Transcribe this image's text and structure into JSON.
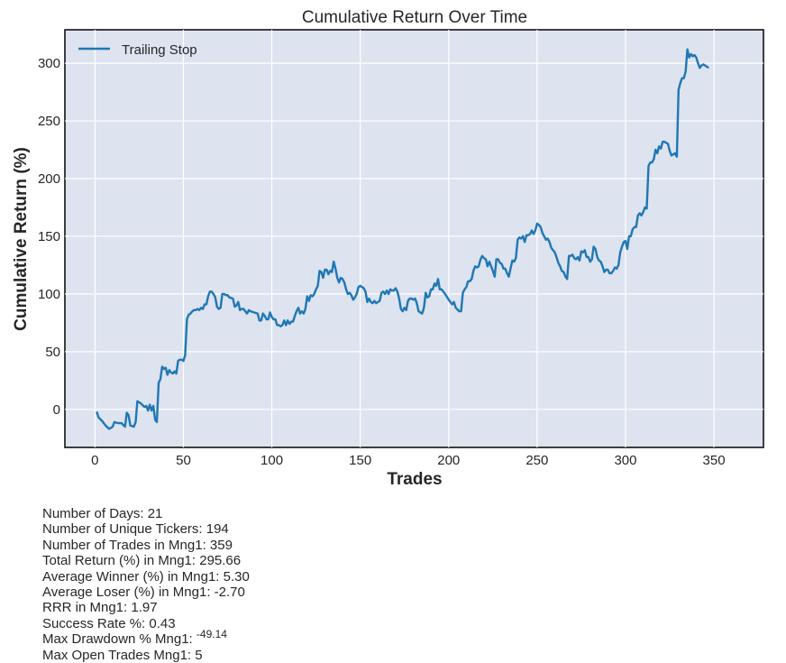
{
  "chart_data": {
    "type": "line",
    "title": "Cumulative Return Over Time",
    "xlabel": "Trades",
    "ylabel": "Cumulative Return (%)",
    "xlim": [
      -17,
      378
    ],
    "ylim": [
      -33,
      329
    ],
    "xticks": [
      0,
      50,
      100,
      150,
      200,
      250,
      300,
      350
    ],
    "yticks": [
      0,
      50,
      100,
      150,
      200,
      250,
      300
    ],
    "grid": true,
    "legend_position": "top-left",
    "series": [
      {
        "name": "Trailing Stop",
        "color": "#1f77b4",
        "points": [
          [
            1,
            -2
          ],
          [
            2,
            -7
          ],
          [
            4,
            -10
          ],
          [
            6,
            -14
          ],
          [
            8,
            -17
          ],
          [
            10,
            -15
          ],
          [
            11,
            -11
          ],
          [
            13,
            -12
          ],
          [
            15,
            -12
          ],
          [
            17,
            -15
          ],
          [
            18,
            -3
          ],
          [
            19,
            -5
          ],
          [
            20,
            -14
          ],
          [
            22,
            -15
          ],
          [
            23,
            -11
          ],
          [
            24,
            7
          ],
          [
            26,
            5
          ],
          [
            28,
            2
          ],
          [
            29,
            3
          ],
          [
            30,
            -1
          ],
          [
            31,
            4
          ],
          [
            32,
            -1
          ],
          [
            33,
            3
          ],
          [
            34,
            -9
          ],
          [
            35,
            -11
          ],
          [
            36,
            23
          ],
          [
            37,
            26
          ],
          [
            38,
            37
          ],
          [
            39,
            35
          ],
          [
            40,
            36
          ],
          [
            41,
            30
          ],
          [
            42,
            34
          ],
          [
            43,
            32
          ],
          [
            44,
            31
          ],
          [
            45,
            33
          ],
          [
            46,
            31
          ],
          [
            47,
            42
          ],
          [
            48,
            43
          ],
          [
            49,
            43
          ],
          [
            50,
            42
          ],
          [
            51,
            47
          ],
          [
            52,
            78
          ],
          [
            53,
            82
          ],
          [
            54,
            83
          ],
          [
            55,
            85
          ],
          [
            56,
            86
          ],
          [
            57,
            86
          ],
          [
            58,
            87
          ],
          [
            59,
            86
          ],
          [
            60,
            88
          ],
          [
            61,
            87
          ],
          [
            62,
            91
          ],
          [
            63,
            91
          ],
          [
            64,
            98
          ],
          [
            65,
            102
          ],
          [
            66,
            102
          ],
          [
            67,
            100
          ],
          [
            68,
            97
          ],
          [
            69,
            89
          ],
          [
            70,
            87
          ],
          [
            71,
            88
          ],
          [
            72,
            100
          ],
          [
            73,
            100
          ],
          [
            74,
            99
          ],
          [
            75,
            99
          ],
          [
            76,
            97
          ],
          [
            78,
            96
          ],
          [
            79,
            89
          ],
          [
            80,
            90
          ],
          [
            81,
            93
          ],
          [
            82,
            86
          ],
          [
            83,
            87
          ],
          [
            84,
            87
          ],
          [
            86,
            83
          ],
          [
            87,
            86
          ],
          [
            88,
            85
          ],
          [
            90,
            84
          ],
          [
            92,
            83
          ],
          [
            93,
            77
          ],
          [
            94,
            77
          ],
          [
            95,
            83
          ],
          [
            96,
            81
          ],
          [
            97,
            78
          ],
          [
            98,
            78
          ],
          [
            99,
            84
          ],
          [
            100,
            80
          ],
          [
            101,
            78
          ],
          [
            102,
            78
          ],
          [
            103,
            73
          ],
          [
            104,
            73
          ],
          [
            105,
            72
          ],
          [
            106,
            73
          ],
          [
            107,
            77
          ],
          [
            108,
            73
          ],
          [
            109,
            77
          ],
          [
            110,
            74
          ],
          [
            111,
            76
          ],
          [
            112,
            76
          ],
          [
            113,
            81
          ],
          [
            114,
            85
          ],
          [
            115,
            88
          ],
          [
            116,
            83
          ],
          [
            117,
            85
          ],
          [
            118,
            83
          ],
          [
            119,
            87
          ],
          [
            120,
            98
          ],
          [
            121,
            94
          ],
          [
            122,
            99
          ],
          [
            123,
            98
          ],
          [
            124,
            100
          ],
          [
            125,
            104
          ],
          [
            126,
            107
          ],
          [
            127,
            120
          ],
          [
            128,
            119
          ],
          [
            129,
            114
          ],
          [
            130,
            121
          ],
          [
            131,
            121
          ],
          [
            132,
            117
          ],
          [
            133,
            120
          ],
          [
            134,
            119
          ],
          [
            135,
            128
          ],
          [
            136,
            122
          ],
          [
            137,
            114
          ],
          [
            138,
            110
          ],
          [
            139,
            114
          ],
          [
            140,
            113
          ],
          [
            141,
            110
          ],
          [
            142,
            104
          ],
          [
            143,
            100
          ],
          [
            144,
            101
          ],
          [
            145,
            99
          ],
          [
            146,
            95
          ],
          [
            147,
            97
          ],
          [
            148,
            100
          ],
          [
            149,
            106
          ],
          [
            150,
            107
          ],
          [
            151,
            106
          ],
          [
            152,
            105
          ],
          [
            153,
            102
          ],
          [
            154,
            93
          ],
          [
            155,
            96
          ],
          [
            156,
            93
          ],
          [
            157,
            92
          ],
          [
            158,
            94
          ],
          [
            159,
            92
          ],
          [
            160,
            93
          ],
          [
            161,
            94
          ],
          [
            162,
            101
          ],
          [
            163,
            102
          ],
          [
            164,
            100
          ],
          [
            165,
            103
          ],
          [
            166,
            100
          ],
          [
            167,
            104
          ],
          [
            168,
            103
          ],
          [
            169,
            103
          ],
          [
            170,
            105
          ],
          [
            171,
            102
          ],
          [
            172,
            96
          ],
          [
            173,
            87
          ],
          [
            174,
            85
          ],
          [
            175,
            88
          ],
          [
            176,
            86
          ],
          [
            177,
            94
          ],
          [
            178,
            96
          ],
          [
            179,
            96
          ],
          [
            180,
            95
          ],
          [
            181,
            96
          ],
          [
            182,
            92
          ],
          [
            183,
            85
          ],
          [
            184,
            84
          ],
          [
            185,
            83
          ],
          [
            186,
            88
          ],
          [
            187,
            101
          ],
          [
            188,
            97
          ],
          [
            189,
            98
          ],
          [
            190,
            104
          ],
          [
            191,
            104
          ],
          [
            192,
            109
          ],
          [
            193,
            107
          ],
          [
            194,
            113
          ],
          [
            195,
            104
          ],
          [
            196,
            104
          ],
          [
            198,
            100
          ],
          [
            200,
            95
          ],
          [
            202,
            91
          ],
          [
            203,
            93
          ],
          [
            204,
            88
          ],
          [
            206,
            85
          ],
          [
            207,
            85
          ],
          [
            208,
            101
          ],
          [
            209,
            104
          ],
          [
            210,
            106
          ],
          [
            211,
            111
          ],
          [
            212,
            111
          ],
          [
            213,
            113
          ],
          [
            214,
            120
          ],
          [
            215,
            124
          ],
          [
            216,
            123
          ],
          [
            217,
            124
          ],
          [
            218,
            130
          ],
          [
            219,
            133
          ],
          [
            220,
            131
          ],
          [
            221,
            130
          ],
          [
            222,
            124
          ],
          [
            223,
            128
          ],
          [
            224,
            124
          ],
          [
            225,
            120
          ],
          [
            226,
            115
          ],
          [
            227,
            130
          ],
          [
            228,
            130
          ],
          [
            229,
            127
          ],
          [
            230,
            126
          ],
          [
            231,
            122
          ],
          [
            232,
            122
          ],
          [
            233,
            118
          ],
          [
            234,
            115
          ],
          [
            235,
            122
          ],
          [
            236,
            129
          ],
          [
            237,
            128
          ],
          [
            238,
            131
          ],
          [
            239,
            147
          ],
          [
            240,
            149
          ],
          [
            241,
            148
          ],
          [
            242,
            150
          ],
          [
            243,
            145
          ],
          [
            244,
            151
          ],
          [
            245,
            151
          ],
          [
            246,
            152
          ],
          [
            247,
            155
          ],
          [
            248,
            152
          ],
          [
            249,
            155
          ],
          [
            250,
            161
          ],
          [
            251,
            160
          ],
          [
            252,
            158
          ],
          [
            253,
            153
          ],
          [
            254,
            150
          ],
          [
            255,
            147
          ],
          [
            256,
            148
          ],
          [
            257,
            145
          ],
          [
            258,
            140
          ],
          [
            259,
            138
          ],
          [
            260,
            136
          ],
          [
            261,
            132
          ],
          [
            262,
            127
          ],
          [
            263,
            124
          ],
          [
            264,
            120
          ],
          [
            265,
            119
          ],
          [
            266,
            115
          ],
          [
            267,
            113
          ],
          [
            268,
            133
          ],
          [
            269,
            133
          ],
          [
            270,
            134
          ],
          [
            271,
            131
          ],
          [
            272,
            130
          ],
          [
            273,
            132
          ],
          [
            274,
            129
          ],
          [
            275,
            137
          ],
          [
            276,
            136
          ],
          [
            277,
            138
          ],
          [
            278,
            132
          ],
          [
            279,
            132
          ],
          [
            280,
            128
          ],
          [
            281,
            130
          ],
          [
            282,
            141
          ],
          [
            283,
            139
          ],
          [
            284,
            132
          ],
          [
            285,
            129
          ],
          [
            286,
            128
          ],
          [
            287,
            124
          ],
          [
            288,
            119
          ],
          [
            289,
            121
          ],
          [
            290,
            121
          ],
          [
            291,
            118
          ],
          [
            292,
            118
          ],
          [
            293,
            120
          ],
          [
            294,
            123
          ],
          [
            295,
            122
          ],
          [
            296,
            125
          ],
          [
            297,
            136
          ],
          [
            298,
            141
          ],
          [
            299,
            145
          ],
          [
            300,
            146
          ],
          [
            301,
            139
          ],
          [
            302,
            150
          ],
          [
            303,
            150
          ],
          [
            304,
            156
          ],
          [
            305,
            158
          ],
          [
            306,
            158
          ],
          [
            307,
            168
          ],
          [
            308,
            170
          ],
          [
            309,
            168
          ],
          [
            310,
            171
          ],
          [
            311,
            175
          ],
          [
            312,
            174
          ],
          [
            313,
            211
          ],
          [
            314,
            214
          ],
          [
            315,
            214
          ],
          [
            316,
            217
          ],
          [
            317,
            225
          ],
          [
            318,
            222
          ],
          [
            319,
            228
          ],
          [
            320,
            226
          ],
          [
            321,
            232
          ],
          [
            322,
            232
          ],
          [
            323,
            231
          ],
          [
            324,
            230
          ],
          [
            325,
            224
          ],
          [
            326,
            220
          ],
          [
            327,
            221
          ],
          [
            328,
            222
          ],
          [
            329,
            219
          ],
          [
            330,
            277
          ],
          [
            331,
            283
          ],
          [
            332,
            287
          ],
          [
            333,
            287
          ],
          [
            334,
            293
          ],
          [
            335,
            312
          ],
          [
            336,
            305
          ],
          [
            337,
            308
          ],
          [
            338,
            306
          ],
          [
            339,
            307
          ],
          [
            340,
            305
          ],
          [
            341,
            300
          ],
          [
            342,
            296
          ],
          [
            343,
            298
          ],
          [
            344,
            299
          ],
          [
            345,
            298
          ],
          [
            346,
            297
          ],
          [
            347,
            296
          ]
        ]
      }
    ]
  },
  "stats": {
    "lines": [
      "Number of Days: 21",
      "Number of Unique Tickers: 194",
      "Number of Trades in Mng1: 359",
      "Total Return (%) in Mng1: 295.66",
      "Average Winner (%) in Mng1: 5.30",
      "Average Loser (%) in Mng1: -2.70",
      "RRR in Mng1: 1.97",
      "Success Rate %: 0.43"
    ],
    "drawdown_label": "Max Drawdown % Mng1:",
    "drawdown_value": "-49.14",
    "last_line": "Max Open Trades Mng1: 5"
  }
}
